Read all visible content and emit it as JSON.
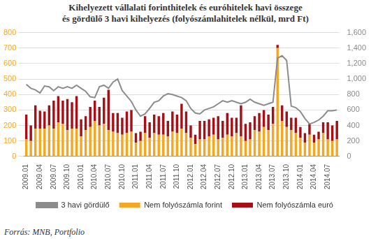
{
  "chart_data": {
    "type": "bar",
    "title": [
      "Kihelyezett vállalati forinthitelek és euróhitelek havi összege",
      "és gördülő 3 havi kihelyezés (folyószámlahitelek nélkül, mrd Ft)"
    ],
    "source": "Forrás: MNB, Portfolio",
    "categories": [
      "2009.01",
      null,
      null,
      "2009.04",
      null,
      null,
      "2009.07",
      null,
      null,
      "2009.10",
      null,
      null,
      "2010.01",
      null,
      null,
      "2010.04",
      null,
      null,
      "2010.07",
      null,
      null,
      "2010.10",
      null,
      null,
      "2011.01",
      null,
      null,
      "2011.04",
      null,
      null,
      "2011.07",
      null,
      null,
      "2011.10",
      null,
      null,
      "2012.01",
      null,
      null,
      "2012.04",
      null,
      null,
      "2012.07",
      null,
      null,
      "2012.10",
      null,
      null,
      "2013.01",
      null,
      null,
      "2013.04",
      null,
      null,
      "2013.07",
      null,
      null,
      "2013.10",
      null,
      null,
      "2014.01",
      null,
      null,
      "2014.04",
      null,
      null,
      "2014.07",
      null,
      null
    ],
    "series": [
      {
        "name": "Nem folyószámla forint",
        "type": "bar",
        "color": "#f5a623",
        "values": [
          110,
          100,
          180,
          180,
          180,
          200,
          180,
          220,
          210,
          170,
          180,
          180,
          130,
          170,
          190,
          230,
          200,
          210,
          170,
          160,
          150,
          140,
          150,
          160,
          90,
          100,
          150,
          120,
          150,
          140,
          140,
          130,
          160,
          150,
          180,
          150,
          120,
          80,
          110,
          110,
          130,
          140,
          110,
          120,
          140,
          130,
          150,
          130,
          100,
          110,
          170,
          160,
          190,
          170,
          210,
          700,
          230,
          190,
          170,
          150,
          120,
          90,
          140,
          90,
          110,
          150,
          110,
          100,
          110
        ]
      },
      {
        "name": "Nem folyószámla euró",
        "type": "bar",
        "color": "#a50f15",
        "values": [
          160,
          100,
          150,
          115,
          110,
          130,
          180,
          170,
          150,
          200,
          170,
          210,
          110,
          90,
          130,
          130,
          120,
          170,
          260,
          120,
          130,
          110,
          140,
          140,
          60,
          60,
          110,
          100,
          120,
          120,
          140,
          100,
          130,
          120,
          160,
          140,
          80,
          60,
          120,
          120,
          110,
          110,
          150,
          110,
          140,
          120,
          100,
          200,
          110,
          110,
          90,
          120,
          110,
          100,
          110,
          20,
          100,
          100,
          80,
          100,
          70,
          60,
          70,
          50,
          50,
          70,
          110,
          100,
          120
        ]
      },
      {
        "name": "3 havi gördülő",
        "type": "line",
        "color": "#8c8c8c",
        "axis": "y2",
        "values": [
          930,
          880,
          860,
          820,
          910,
          900,
          850,
          900,
          880,
          900,
          880,
          920,
          880,
          840,
          770,
          760,
          900,
          920,
          880,
          960,
          1000,
          850,
          780,
          710,
          600,
          520,
          550,
          620,
          700,
          720,
          780,
          810,
          800,
          780,
          760,
          720,
          620,
          560,
          550,
          600,
          620,
          640,
          680,
          720,
          700,
          720,
          700,
          680,
          700,
          740,
          700,
          680,
          660,
          680,
          700,
          1270,
          1300,
          1240,
          650,
          630,
          580,
          490,
          420,
          440,
          470,
          520,
          590,
          590,
          600
        ]
      }
    ],
    "ylim": [
      0,
      800
    ],
    "yticks": [
      0,
      100,
      200,
      300,
      400,
      500,
      600,
      700,
      800
    ],
    "y2lim": [
      0,
      1600
    ],
    "y2ticks": [
      0,
      200,
      400,
      600,
      800,
      1000,
      1200,
      1400,
      1600
    ],
    "stacked": true,
    "grid": true,
    "legend": "bottom"
  }
}
